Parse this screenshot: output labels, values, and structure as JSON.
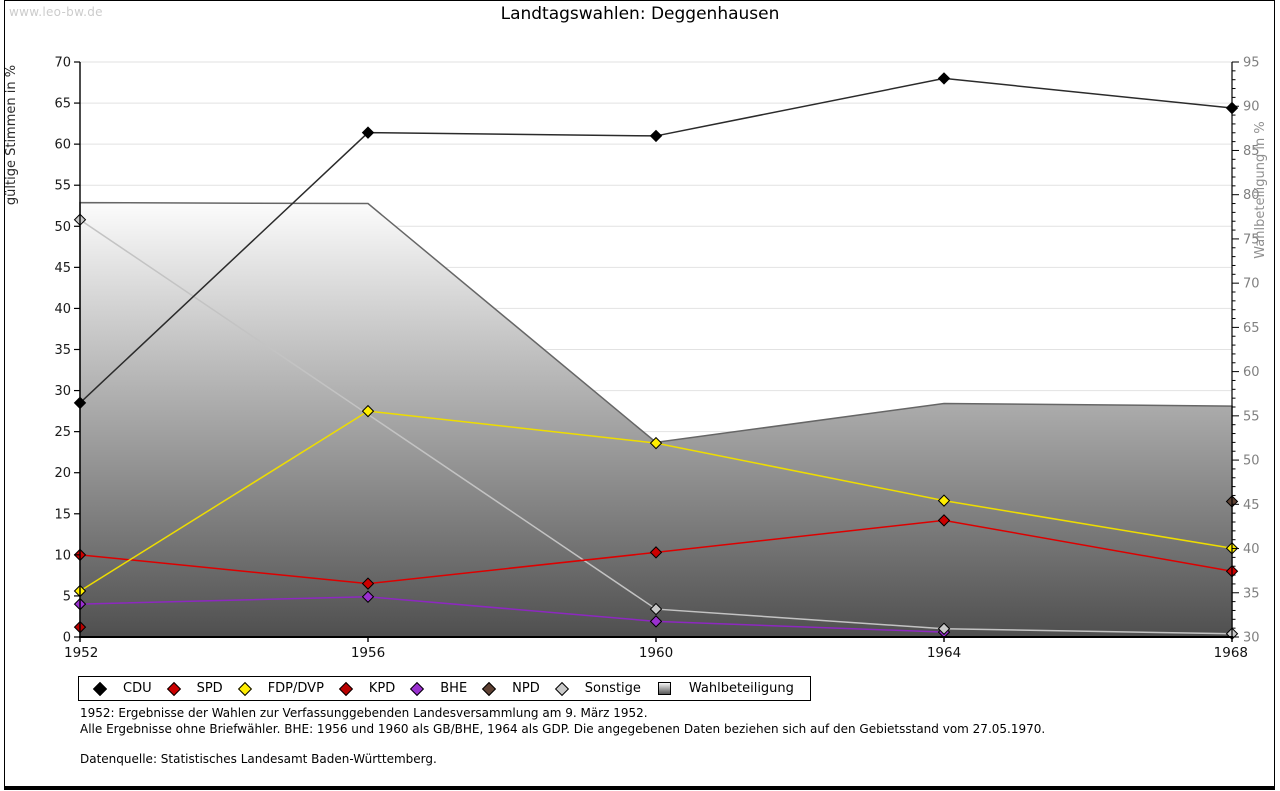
{
  "watermark": "www.leo-bw.de",
  "chart_data": {
    "type": "line",
    "title": "Landtagswahlen: Deggenhausen",
    "x": [
      1952,
      1956,
      1960,
      1964,
      1968
    ],
    "left_axis": {
      "label": "gültige Stimmen in %",
      "min": 0,
      "max": 70,
      "step": 5
    },
    "right_axis": {
      "label": "Wahlbeteiligung in %",
      "min": 30,
      "max": 95,
      "step": 5,
      "minor_step": 1
    },
    "grid": true,
    "legend_position": "bottom",
    "series": [
      {
        "name": "CDU",
        "marker": "diamond",
        "axis": "left",
        "color": "#000000",
        "line_color": "#2b2b2b",
        "values": [
          28.5,
          61.4,
          61.0,
          68.0,
          64.4
        ]
      },
      {
        "name": "SPD",
        "marker": "diamond",
        "axis": "left",
        "color": "#cc0000",
        "line_color": "#dd0000",
        "values": [
          10.0,
          6.5,
          10.3,
          14.2,
          8.0
        ]
      },
      {
        "name": "FDP/DVP",
        "marker": "diamond",
        "axis": "left",
        "color": "#ffee00",
        "line_color": "#eedd00",
        "values": [
          5.6,
          27.5,
          23.6,
          16.6,
          10.8
        ]
      },
      {
        "name": "KPD",
        "marker": "diamond",
        "axis": "left",
        "color": "#bb0000",
        "line_color": "#bb0000",
        "values": [
          1.2,
          null,
          null,
          null,
          null
        ]
      },
      {
        "name": "BHE",
        "marker": "diamond",
        "axis": "left",
        "color": "#9a30d0",
        "line_color": "#8d28c0",
        "values": [
          4.0,
          4.9,
          1.9,
          0.6,
          null
        ]
      },
      {
        "name": "NPD",
        "marker": "diamond",
        "axis": "left",
        "color": "#5e4133",
        "line_color": "#5e4133",
        "values": [
          null,
          null,
          null,
          null,
          16.5
        ]
      },
      {
        "name": "Sonstige",
        "marker": "diamond",
        "axis": "left",
        "color": "#c9c9c9",
        "line_color": "#c3c3c3",
        "values": [
          50.8,
          null,
          3.4,
          1.0,
          0.4
        ]
      },
      {
        "name": "Wahlbeteiligung",
        "marker": "square",
        "type": "area",
        "axis": "right",
        "fill_top": "#fcfcfc",
        "fill_bottom": "#4f4f4f",
        "outline": "#666666",
        "values": [
          79.1,
          79.0,
          52.0,
          56.4,
          56.1
        ]
      }
    ]
  },
  "footnotes": [
    "1952: Ergebnisse der Wahlen zur Verfassunggebenden Landesversammlung am 9. März 1952.",
    "Alle Ergebnisse ohne Briefwähler. BHE: 1956 und 1960 als GB/BHE, 1964 als GDP. Die angegebenen Daten beziehen sich auf den Gebietsstand vom 27.05.1970."
  ],
  "source": "Datenquelle: Statistisches Landesamt Baden-Württemberg."
}
